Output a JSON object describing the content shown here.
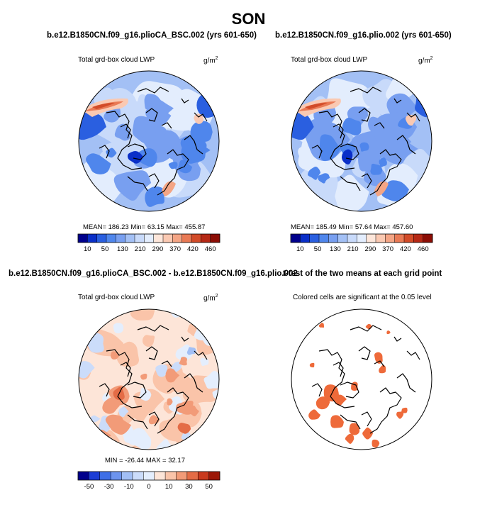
{
  "figure": {
    "main_title": "SON"
  },
  "panels": [
    {
      "id": "top-left",
      "run_title": "b.e12.B1850CN.f09_g16.plioCA_BSC.002 (yrs 601-650)",
      "left_label": "Total grd-box cloud LWP",
      "units": "g/m",
      "units_sup": "2",
      "stats": "MEAN= 186.23  Min= 63.15  Max= 455.87",
      "colorbar_labels": [
        "10",
        "50",
        "130",
        "210",
        "290",
        "370",
        "420",
        "460"
      ]
    },
    {
      "id": "top-right",
      "run_title": "b.e12.B1850CN.f09_g16.plio.002 (yrs 601-650)",
      "left_label": "Total grd-box cloud LWP",
      "units": "g/m",
      "units_sup": "2",
      "stats": "MEAN= 185.49  Min= 57.64  Max= 457.60",
      "colorbar_labels": [
        "10",
        "50",
        "130",
        "210",
        "290",
        "370",
        "420",
        "460"
      ]
    },
    {
      "id": "bottom-left",
      "run_title": "b.e12.B1850CN.f09_g16.plioCA_BSC.002 - b.e12.B1850CN.f09_g16.plio.002",
      "left_label": "Total grd-box cloud LWP",
      "units": "g/m",
      "units_sup": "2",
      "stats": "MIN = -26.44  MAX = 32.17",
      "colorbar_labels": [
        "-50",
        "-30",
        "-10",
        "0",
        "10",
        "30",
        "50"
      ]
    },
    {
      "id": "bottom-right",
      "run_title": "t-test of the two means at each grid point",
      "center_label": "Colored cells are significant at the 0.05 level"
    }
  ],
  "colors": {
    "abs_levels": [
      "#00008c",
      "#0a2fc8",
      "#2a5fe0",
      "#4f86ec",
      "#789ff0",
      "#a3c0f5",
      "#c8dafa",
      "#e3edfd",
      "#fde6da",
      "#fac9b2",
      "#f4a585",
      "#e97a55",
      "#d24b28",
      "#b52815",
      "#8c0d05"
    ],
    "diff_levels": [
      "#00008c",
      "#1c3dd6",
      "#3e6ee6",
      "#6d94ee",
      "#a2bff5",
      "#cbdcfa",
      "#e4eefd",
      "#fde5d8",
      "#fac4a9",
      "#f29b78",
      "#e46c46",
      "#c93a1e",
      "#9c1808"
    ],
    "sig_color": "#ee6a3a",
    "ocean_abs": "#a9c6f4",
    "ocean_diff": "#f7d3c0",
    "coast": "#000000"
  },
  "chart_data": [
    {
      "type": "heatmap",
      "title": "b.e12.B1850CN.f09_g16.plioCA_BSC.002 (yrs 601-650)",
      "variable": "Total grd-box cloud LWP",
      "units": "g/m2",
      "mean": 186.23,
      "min": 63.15,
      "max": 455.87,
      "levels": [
        10,
        50,
        130,
        210,
        290,
        370,
        420,
        460
      ],
      "projection": "polar stereographic (North Pole)"
    },
    {
      "type": "heatmap",
      "title": "b.e12.B1850CN.f09_g16.plio.002 (yrs 601-650)",
      "variable": "Total grd-box cloud LWP",
      "units": "g/m2",
      "mean": 185.49,
      "min": 57.64,
      "max": 457.6,
      "levels": [
        10,
        50,
        130,
        210,
        290,
        370,
        420,
        460
      ],
      "projection": "polar stereographic (North Pole)"
    },
    {
      "type": "heatmap",
      "title": "b.e12.B1850CN.f09_g16.plioCA_BSC.002 - b.e12.B1850CN.f09_g16.plio.002",
      "variable": "Total grd-box cloud LWP",
      "units": "g/m2",
      "min": -26.44,
      "max": 32.17,
      "levels": [
        -50,
        -30,
        -10,
        0,
        10,
        30,
        50
      ],
      "projection": "polar stereographic (North Pole)"
    },
    {
      "type": "heatmap",
      "title": "t-test of the two means at each grid point",
      "note": "Colored cells are significant at the 0.05 level",
      "significance_level": 0.05,
      "projection": "polar stereographic (North Pole)"
    }
  ]
}
